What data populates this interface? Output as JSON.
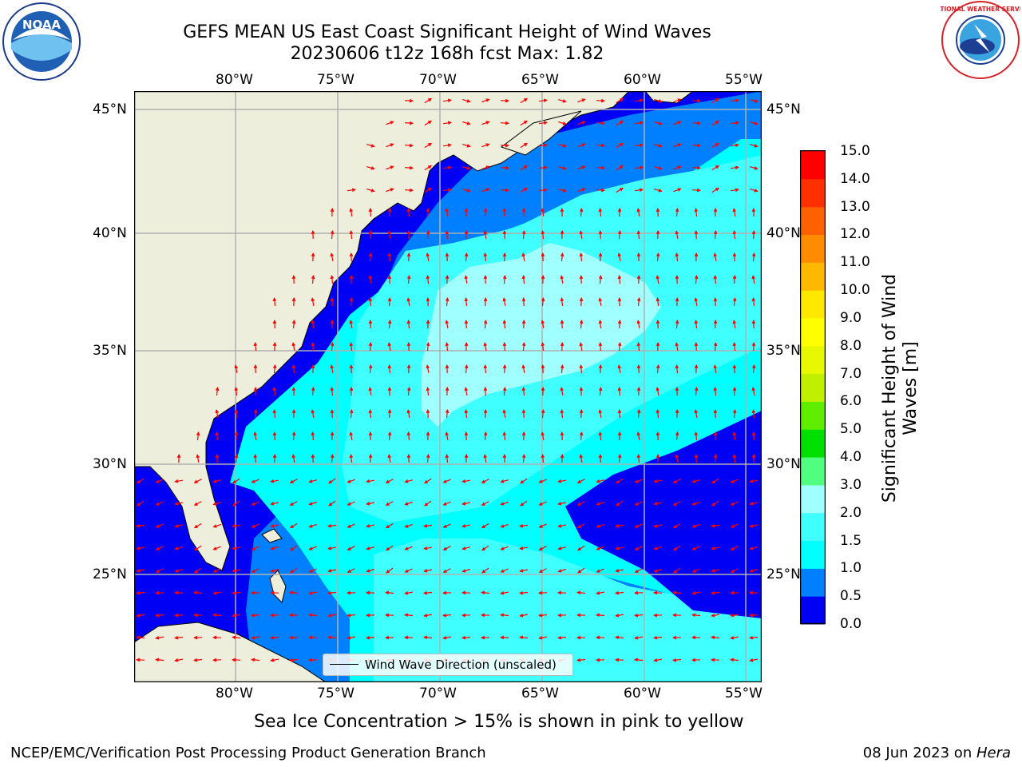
{
  "title": {
    "line1": "GEFS MEAN US East Coast Significant Height of Wind Waves",
    "line2": "20230606 t12z 168h fcst   Max: 1.82"
  },
  "logos": {
    "left_text": "NOAA",
    "right_text": "NATIONAL WEATHER SERVICE"
  },
  "axes": {
    "lon_ticks": [
      "80°W",
      "75°W",
      "70°W",
      "65°W",
      "60°W",
      "55°W"
    ],
    "lat_ticks": [
      "45°N",
      "40°N",
      "35°N",
      "30°N",
      "25°N"
    ]
  },
  "legend": {
    "label": "Wind Wave Direction (unscaled)"
  },
  "colorbar": {
    "label_line1": "Significant Height of Wind",
    "label_line2": "Waves [m]",
    "ticks": [
      "0.0",
      "0.5",
      "1.0",
      "1.5",
      "2.0",
      "3.0",
      "4.0",
      "5.0",
      "6.0",
      "7.0",
      "8.0",
      "9.0",
      "10.0",
      "11.0",
      "12.0",
      "13.0",
      "14.0",
      "15.0"
    ],
    "colors": [
      "#0000f5",
      "#0080ff",
      "#00ffff",
      "#40ffff",
      "#a0ffff",
      "#50ff80",
      "#00e000",
      "#60ee00",
      "#c0f000",
      "#e8f800",
      "#ffff00",
      "#ffe800",
      "#ffb800",
      "#ff8c00",
      "#ff6000",
      "#ff3000",
      "#ff0000"
    ]
  },
  "map": {
    "land_color": "#eeeedc",
    "arrow_color": "#ff0000",
    "level_colors": [
      "#0000f5",
      "#0080ff",
      "#00ffff",
      "#40ffff",
      "#a0ffff"
    ]
  },
  "notes": {
    "sea_ice": "Sea Ice Concentration > 15% is shown in pink to yellow"
  },
  "footer": {
    "left": "NCEP/EMC/Verification Post Processing Product Generation Branch",
    "right_date": "08 Jun 2023 on ",
    "right_host": "Hera"
  }
}
